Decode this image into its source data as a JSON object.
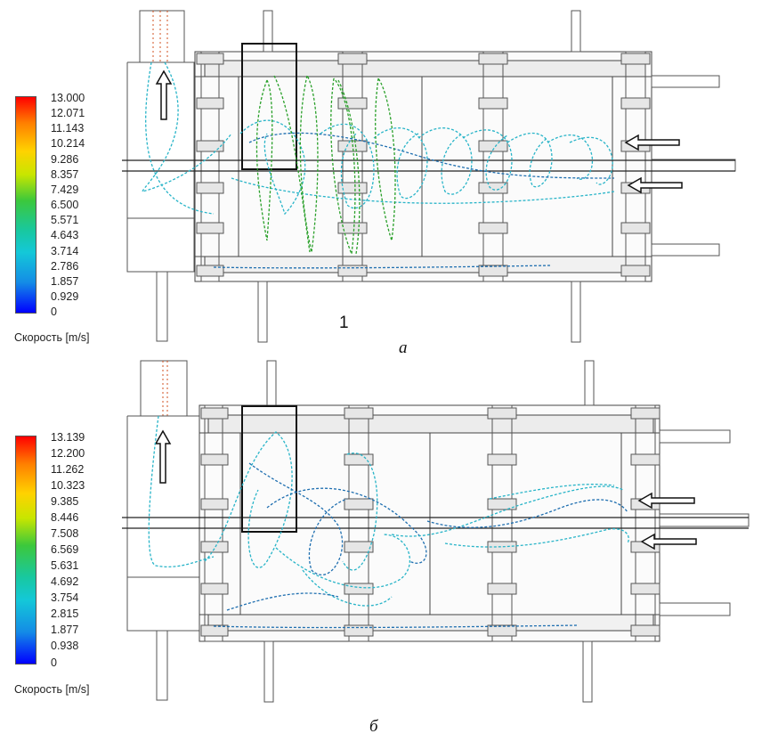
{
  "panel_a": {
    "legend": {
      "ticks": [
        "13.000",
        "12.071",
        "11.143",
        "10.214",
        "9.286",
        "8.357",
        "7.429",
        "6.500",
        "5.571",
        "4.643",
        "3.714",
        "2.786",
        "1.857",
        "0.929",
        "0"
      ],
      "title": "Скорость [m/s]"
    },
    "marker": "1",
    "caption": "а"
  },
  "panel_b": {
    "legend": {
      "ticks": [
        "13.139",
        "12.200",
        "11.262",
        "10.323",
        "9.385",
        "8.446",
        "7.508",
        "6.569",
        "5.631",
        "4.692",
        "3.754",
        "2.815",
        "1.877",
        "0.938",
        "0"
      ],
      "title": "Скорость [m/s]"
    },
    "caption": "б"
  },
  "colors": {
    "frame": "#555555",
    "streamline_blue": "#1f6fb0",
    "streamline_cyan": "#28b4c8",
    "streamline_green": "#2aa02a",
    "highlight_box": "#111111"
  }
}
